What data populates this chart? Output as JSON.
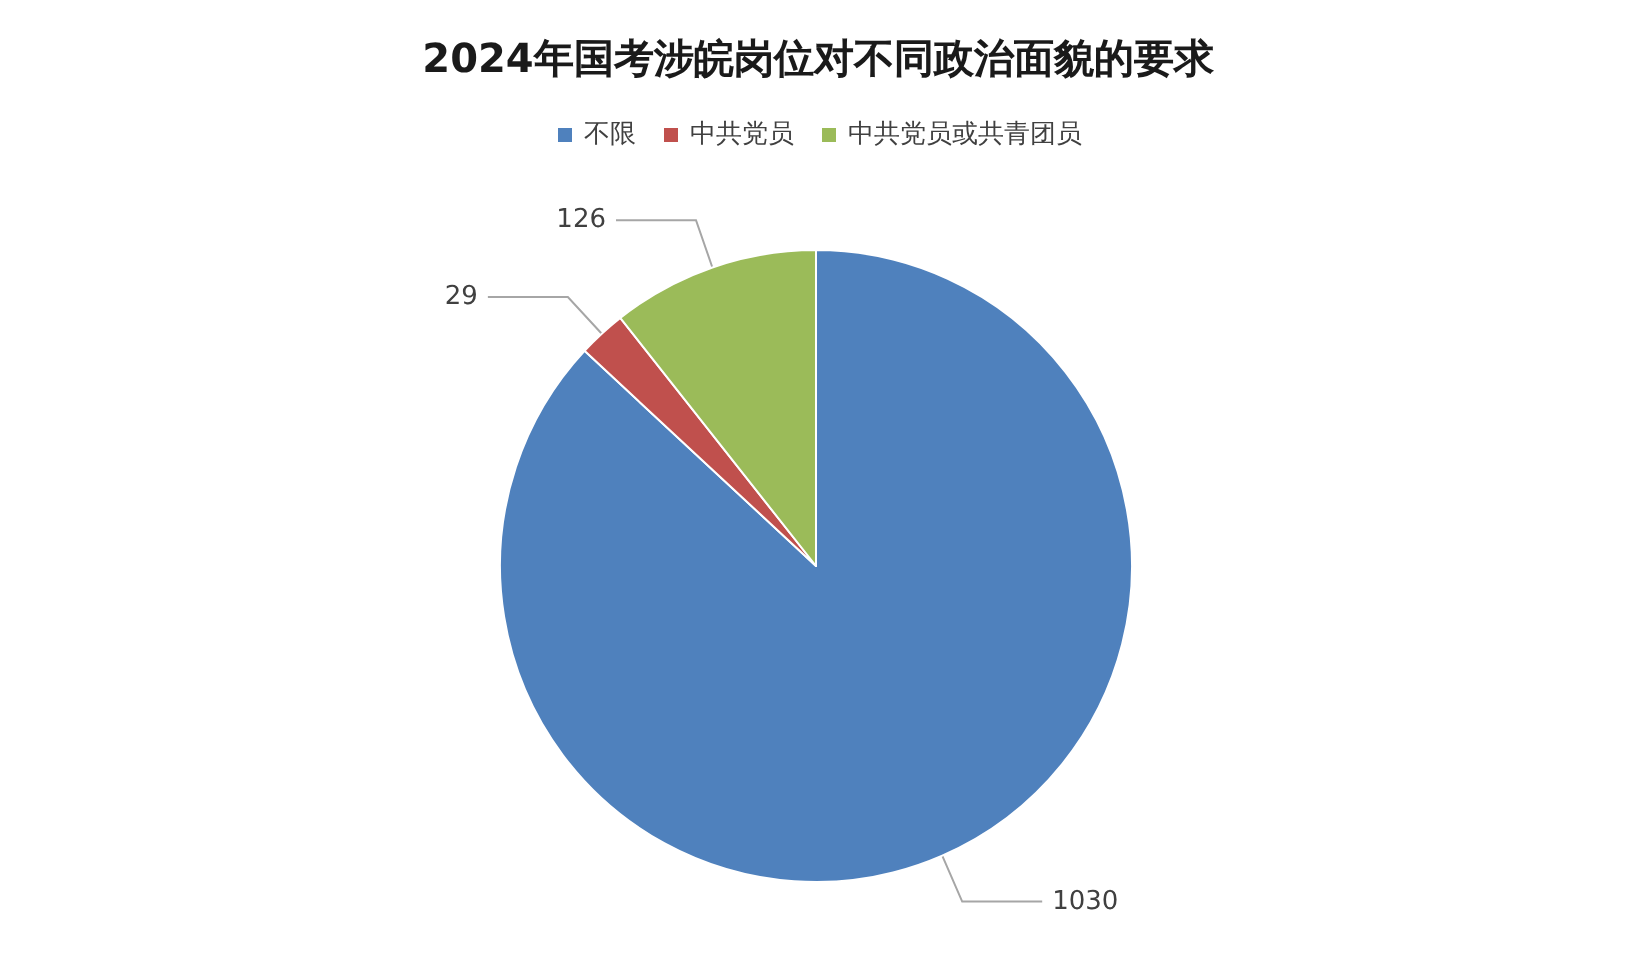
{
  "chart_data": {
    "type": "pie",
    "title": "2024年国考涉皖岗位对不同政治面貌的要求",
    "categories": [
      "不限",
      "中共党员",
      "中共党员或共青团员"
    ],
    "values": [
      1030,
      29,
      126
    ],
    "colors": [
      "#4f81bd",
      "#c0504d",
      "#9bbb59"
    ],
    "data_labels": true,
    "legend": "top"
  }
}
